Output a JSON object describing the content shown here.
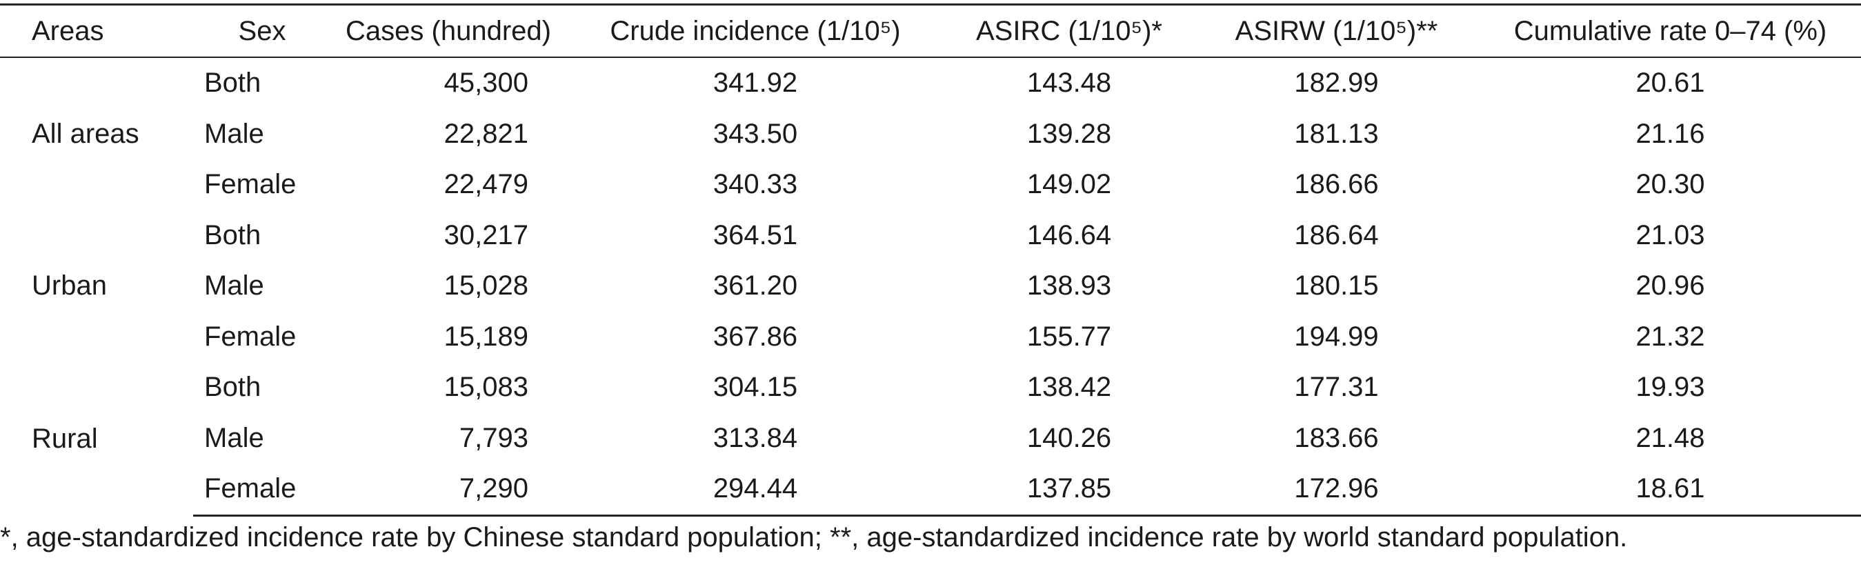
{
  "table": {
    "header": [
      "Areas",
      "Sex",
      "Cases (hundred)",
      "Crude incidence (1/10⁵)",
      "ASIRC (1/10⁵)*",
      "ASIRW (1/10⁵)**",
      "Cumulative rate 0–74 (%)"
    ],
    "groups": [
      {
        "area": "All areas",
        "rows": [
          [
            "Both",
            "45,300",
            "341.92",
            "143.48",
            "182.99",
            "20.61"
          ],
          [
            "Male",
            "22,821",
            "343.50",
            "139.28",
            "181.13",
            "21.16"
          ],
          [
            "Female",
            "22,479",
            "340.33",
            "149.02",
            "186.66",
            "20.30"
          ]
        ]
      },
      {
        "area": "Urban",
        "rows": [
          [
            "Both",
            "30,217",
            "364.51",
            "146.64",
            "186.64",
            "21.03"
          ],
          [
            "Male",
            "15,028",
            "361.20",
            "138.93",
            "180.15",
            "20.96"
          ],
          [
            "Female",
            "15,189",
            "367.86",
            "155.77",
            "194.99",
            "21.32"
          ]
        ]
      },
      {
        "area": "Rural",
        "rows": [
          [
            "Both",
            "15,083",
            "304.15",
            "138.42",
            "177.31",
            "19.93"
          ],
          [
            "Male",
            "7,793",
            "313.84",
            "140.26",
            "183.66",
            "21.48"
          ],
          [
            "Female",
            "7,290",
            "294.44",
            "137.85",
            "172.96",
            "18.61"
          ]
        ]
      }
    ]
  },
  "footnote": "*, age-standardized incidence rate by Chinese standard population; **, age-standardized incidence rate by world standard population."
}
